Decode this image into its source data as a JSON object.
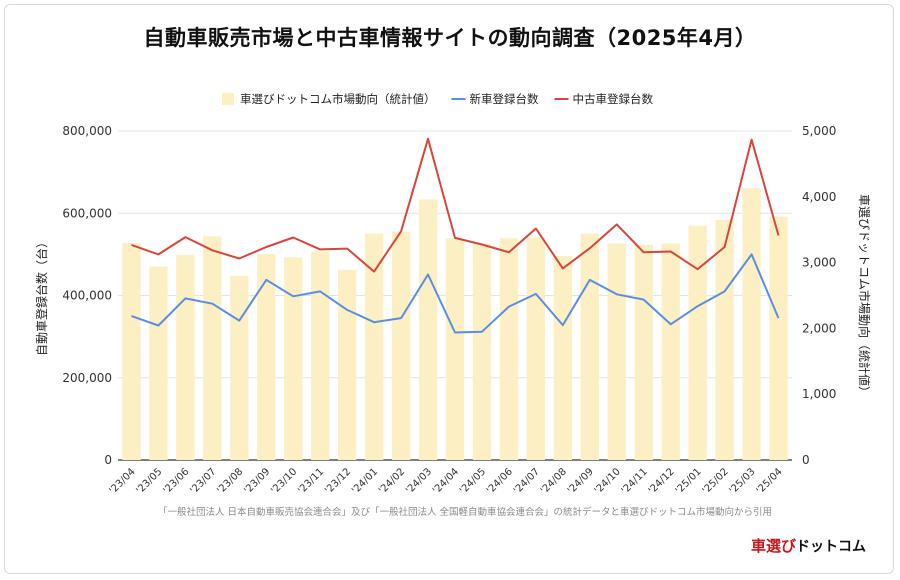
{
  "title": "自動車販売市場と中古車情報サイトの動向調査（2025年4月）",
  "source_note": "「一般社団法人 日本自動車販売協会連合会」及び「一般社団法人 全国軽自動車協会連合会」の統計データと車選びドットコム市場動向から引用",
  "brand": {
    "part1": "車選び",
    "part2": "ドットコム"
  },
  "colors": {
    "bar": "#fcefc4",
    "new_line": "#5b8ee0",
    "used_line": "#d9453b",
    "grid": "#e3e3e3",
    "axis_text": "#333333"
  },
  "chart_data": {
    "type": "bar+line",
    "categories": [
      "'23/04",
      "'23/05",
      "'23/06",
      "'23/07",
      "'23/08",
      "'23/09",
      "'23/10",
      "'23/11",
      "'23/12",
      "'24/01",
      "'24/02",
      "'24/03",
      "'24/04",
      "'24/05",
      "'24/06",
      "'24/07",
      "'24/08",
      "'24/09",
      "'24/10",
      "'24/11",
      "'24/12",
      "'25/01",
      "'25/02",
      "'25/03",
      "'25/04"
    ],
    "left_axis": {
      "label": "自動車登録台数（台）",
      "ylim": [
        0,
        800000
      ],
      "ticks": [
        0,
        200000,
        400000,
        600000,
        800000
      ],
      "tick_labels": [
        "0",
        "200,000",
        "400,000",
        "600,000",
        "800,000"
      ]
    },
    "right_axis": {
      "label": "車選びドットコム市場動向（統計値）",
      "ylim": [
        0,
        5000
      ],
      "ticks": [
        0,
        1000,
        2000,
        3000,
        4000,
        5000
      ],
      "tick_labels": [
        "0",
        "1,000",
        "2,000",
        "3,000",
        "4,000",
        "5,000"
      ]
    },
    "series": [
      {
        "name": "車選びドットコム市場動向（統計値）",
        "kind": "bar",
        "axis": "right",
        "values": [
          3300,
          2940,
          3120,
          3400,
          2800,
          3130,
          3080,
          3170,
          2890,
          3440,
          3470,
          3960,
          3370,
          3290,
          3370,
          3380,
          3100,
          3440,
          3290,
          3270,
          3290,
          3560,
          3650,
          4130,
          3700
        ]
      },
      {
        "name": "新車登録台数",
        "kind": "line",
        "axis": "left",
        "values": [
          350000,
          327000,
          393000,
          380000,
          339000,
          438000,
          398000,
          410000,
          365000,
          335000,
          345000,
          451000,
          310000,
          312000,
          373000,
          404000,
          328000,
          438000,
          403000,
          390000,
          330000,
          374000,
          410000,
          500000,
          345000
        ]
      },
      {
        "name": "中古車登録台数",
        "kind": "line",
        "axis": "left",
        "values": [
          523000,
          500000,
          542000,
          510000,
          490000,
          518000,
          541000,
          512000,
          514000,
          458000,
          556000,
          781000,
          540000,
          524000,
          505000,
          563000,
          466000,
          515000,
          573000,
          505000,
          507000,
          464000,
          518000,
          779000,
          546000
        ]
      }
    ]
  }
}
